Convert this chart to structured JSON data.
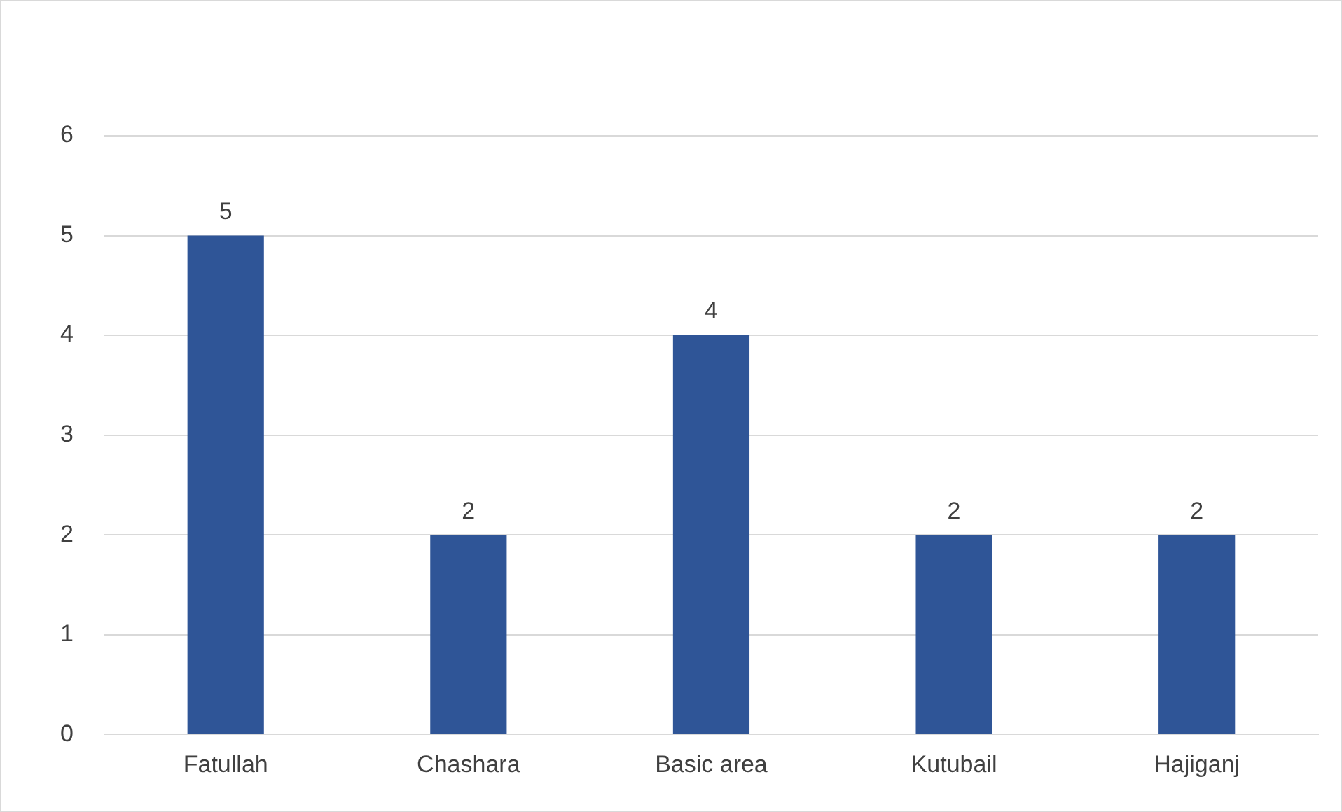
{
  "chart_data": {
    "type": "bar",
    "categories": [
      "Fatullah",
      "Chashara",
      "Basic area",
      "Kutubail",
      "Hajiganj"
    ],
    "values": [
      5,
      2,
      4,
      2,
      2
    ],
    "color": "#2f5597",
    "ylim": [
      0,
      6
    ],
    "yticks": [
      0,
      1,
      2,
      3,
      4,
      5,
      6
    ],
    "grid": "y",
    "data_labels": true,
    "legend": false
  }
}
